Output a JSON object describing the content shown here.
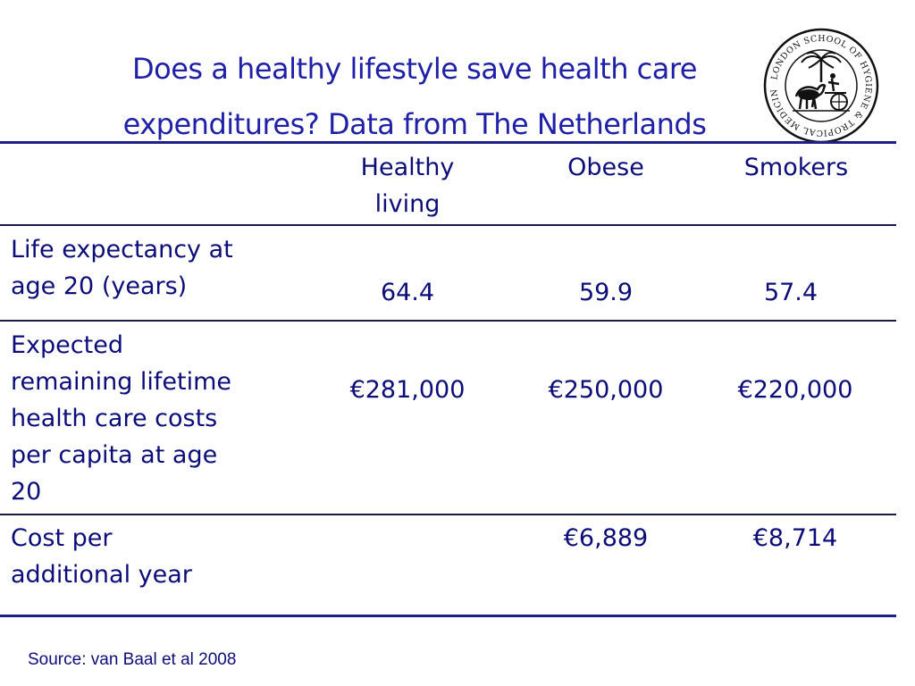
{
  "title": {
    "line1": "Does a healthy lifestyle save health care",
    "line2": "expenditures? Data from The Netherlands"
  },
  "logo": {
    "icon": "school-seal-icon",
    "ring_text": "LONDON SCHOOL OF HYGIENE & TROPICAL MEDICINE"
  },
  "table": {
    "columns": [
      "Healthy living",
      "Obese",
      "Smokers"
    ],
    "column_lines": [
      [
        "Healthy",
        "living"
      ],
      [
        "Obese"
      ],
      [
        "Smokers"
      ]
    ],
    "rows": [
      {
        "label": "Life expectancy at age 20 (years)",
        "label_lines": [
          "Life expectancy at",
          "age 20 (years)"
        ],
        "values": [
          "64.4",
          "59.9",
          "57.4"
        ]
      },
      {
        "label": "Expected remaining lifetime health care costs per capita at age 20",
        "label_lines": [
          "Expected",
          "remaining lifetime",
          "health care costs",
          "per capita at age",
          "20"
        ],
        "values": [
          "€281,000",
          "€250,000",
          "€220,000"
        ]
      },
      {
        "label": "Cost per additional year",
        "label_lines": [
          "Cost per",
          "additional year"
        ],
        "values": [
          "",
          "€6,889",
          "€8,714"
        ]
      }
    ]
  },
  "source": "Source: van Baal et al 2008",
  "colors": {
    "text": "#0d0d7a",
    "title": "#1f1fa8",
    "rule": "#1f1f8a"
  }
}
